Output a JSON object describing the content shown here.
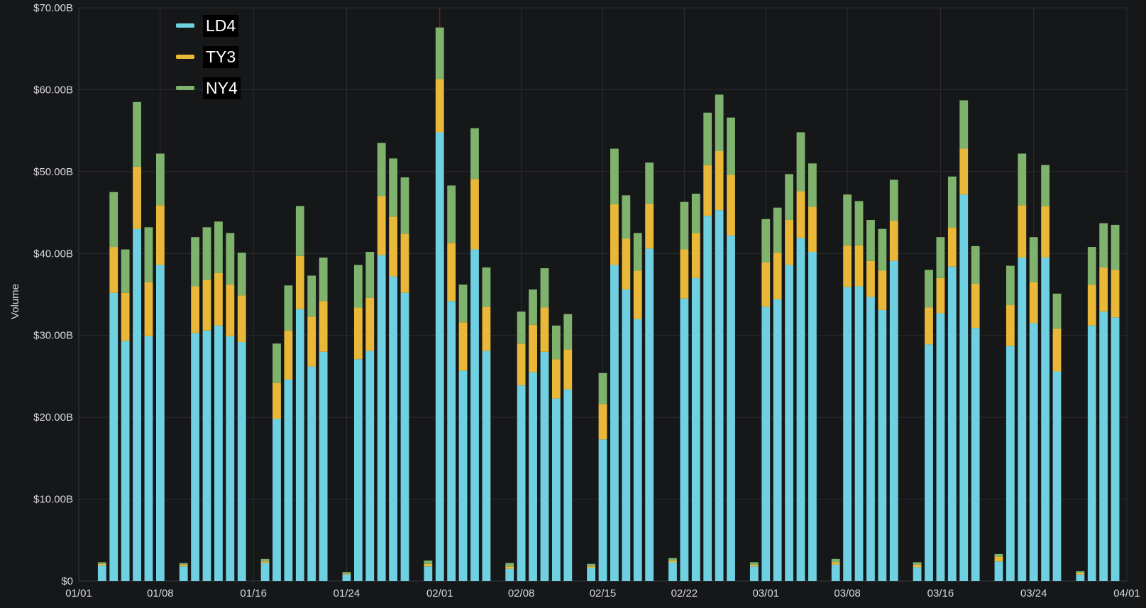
{
  "chart_data": {
    "type": "bar",
    "stacked": true,
    "ylabel": "Volume",
    "ylim": [
      0,
      70
    ],
    "y_unit": "billions USD",
    "yticks": [
      "$0",
      "$10.00B",
      "$20.00B",
      "$30.00B",
      "$40.00B",
      "$50.00B",
      "$60.00B",
      "$70.00B"
    ],
    "x_range": [
      "2021-01-01",
      "2021-04-01"
    ],
    "xticks": [
      {
        "date": "2021-01-01",
        "label": "01/01"
      },
      {
        "date": "2021-01-08",
        "label": "01/08"
      },
      {
        "date": "2021-01-16",
        "label": "01/16"
      },
      {
        "date": "2021-01-24",
        "label": "01/24"
      },
      {
        "date": "2021-02-01",
        "label": "02/01"
      },
      {
        "date": "2021-02-08",
        "label": "02/08"
      },
      {
        "date": "2021-02-15",
        "label": "02/15"
      },
      {
        "date": "2021-02-22",
        "label": "02/22"
      },
      {
        "date": "2021-03-01",
        "label": "03/01"
      },
      {
        "date": "2021-03-08",
        "label": "03/08"
      },
      {
        "date": "2021-03-16",
        "label": "03/16"
      },
      {
        "date": "2021-03-24",
        "label": "03/24"
      },
      {
        "date": "2021-04-01",
        "label": "04/01"
      }
    ],
    "grid": true,
    "legend_position": "top-left",
    "marker_line_date": "2021-02-01",
    "x": [
      "2021-01-03",
      "2021-01-04",
      "2021-01-05",
      "2021-01-06",
      "2021-01-07",
      "2021-01-08",
      "2021-01-10",
      "2021-01-11",
      "2021-01-12",
      "2021-01-13",
      "2021-01-14",
      "2021-01-15",
      "2021-01-17",
      "2021-01-18",
      "2021-01-19",
      "2021-01-20",
      "2021-01-21",
      "2021-01-22",
      "2021-01-24",
      "2021-01-25",
      "2021-01-26",
      "2021-01-27",
      "2021-01-28",
      "2021-01-29",
      "2021-01-31",
      "2021-02-01",
      "2021-02-02",
      "2021-02-03",
      "2021-02-04",
      "2021-02-05",
      "2021-02-07",
      "2021-02-08",
      "2021-02-09",
      "2021-02-10",
      "2021-02-11",
      "2021-02-12",
      "2021-02-14",
      "2021-02-15",
      "2021-02-16",
      "2021-02-17",
      "2021-02-18",
      "2021-02-19",
      "2021-02-21",
      "2021-02-22",
      "2021-02-23",
      "2021-02-24",
      "2021-02-25",
      "2021-02-26",
      "2021-02-28",
      "2021-03-01",
      "2021-03-02",
      "2021-03-03",
      "2021-03-04",
      "2021-03-05",
      "2021-03-07",
      "2021-03-08",
      "2021-03-09",
      "2021-03-10",
      "2021-03-11",
      "2021-03-12",
      "2021-03-14",
      "2021-03-15",
      "2021-03-16",
      "2021-03-17",
      "2021-03-18",
      "2021-03-19",
      "2021-03-21",
      "2021-03-22",
      "2021-03-23",
      "2021-03-24",
      "2021-03-25",
      "2021-03-26",
      "2021-03-28",
      "2021-03-29",
      "2021-03-30",
      "2021-03-31"
    ],
    "series": [
      {
        "name": "LD4",
        "color": "#6ed0e0",
        "values": [
          1.9,
          35.2,
          29.3,
          43.0,
          29.9,
          38.6,
          1.8,
          30.3,
          30.6,
          31.2,
          29.9,
          29.2,
          2.2,
          19.8,
          24.6,
          33.2,
          26.2,
          28.0,
          0.8,
          27.1,
          28.1,
          39.8,
          37.2,
          35.2,
          1.8,
          54.8,
          34.2,
          25.7,
          40.5,
          28.1,
          1.5,
          23.9,
          25.5,
          28.0,
          22.3,
          23.4,
          1.6,
          17.3,
          38.6,
          35.6,
          32.0,
          40.6,
          2.3,
          34.5,
          37.0,
          44.6,
          45.3,
          42.2,
          1.8,
          33.5,
          34.4,
          38.6,
          41.9,
          40.2,
          2.0,
          35.9,
          36.0,
          34.7,
          33.1,
          39.1,
          1.7,
          28.9,
          32.7,
          38.4,
          47.2,
          30.9,
          2.4,
          28.7,
          39.5,
          31.5,
          39.5,
          25.6,
          0.8,
          31.2,
          32.9,
          32.2
        ]
      },
      {
        "name": "TY3",
        "color": "#eab839",
        "values": [
          0.2,
          5.6,
          5.9,
          7.6,
          6.6,
          7.3,
          0.2,
          5.7,
          6.2,
          6.4,
          6.3,
          5.7,
          0.2,
          4.4,
          6.0,
          6.5,
          6.1,
          6.2,
          0.1,
          6.3,
          6.5,
          7.2,
          7.3,
          7.2,
          0.3,
          6.5,
          7.1,
          5.9,
          8.6,
          5.4,
          0.3,
          5.1,
          5.8,
          5.4,
          4.8,
          4.9,
          0.2,
          4.3,
          7.4,
          6.2,
          5.9,
          5.5,
          0.2,
          6.0,
          5.5,
          6.2,
          7.2,
          7.4,
          0.2,
          5.4,
          5.7,
          5.5,
          5.7,
          5.5,
          0.3,
          5.1,
          5.0,
          4.4,
          4.8,
          4.9,
          0.3,
          4.5,
          4.3,
          4.8,
          5.6,
          5.4,
          0.6,
          5.0,
          6.4,
          5.0,
          6.3,
          5.2,
          0.2,
          5.0,
          5.4,
          5.8
        ]
      },
      {
        "name": "NY4",
        "color": "#7eb26d",
        "values": [
          0.2,
          6.7,
          5.3,
          7.9,
          6.7,
          6.3,
          0.2,
          6.0,
          6.4,
          6.3,
          6.3,
          5.2,
          0.3,
          4.8,
          5.5,
          6.1,
          5.0,
          5.3,
          0.2,
          5.2,
          5.6,
          6.5,
          7.1,
          6.9,
          0.4,
          6.3,
          7.0,
          4.6,
          6.2,
          4.8,
          0.4,
          3.9,
          4.3,
          4.8,
          4.1,
          4.3,
          0.3,
          3.8,
          6.8,
          5.3,
          4.6,
          5.0,
          0.3,
          5.8,
          4.8,
          6.4,
          6.9,
          7.0,
          0.3,
          5.3,
          5.5,
          5.6,
          7.2,
          5.3,
          0.4,
          6.2,
          5.4,
          5.0,
          5.1,
          5.0,
          0.3,
          4.6,
          5.0,
          6.2,
          5.9,
          4.6,
          0.3,
          4.8,
          6.3,
          5.5,
          5.0,
          4.3,
          0.2,
          4.6,
          5.4,
          5.5
        ]
      }
    ]
  }
}
